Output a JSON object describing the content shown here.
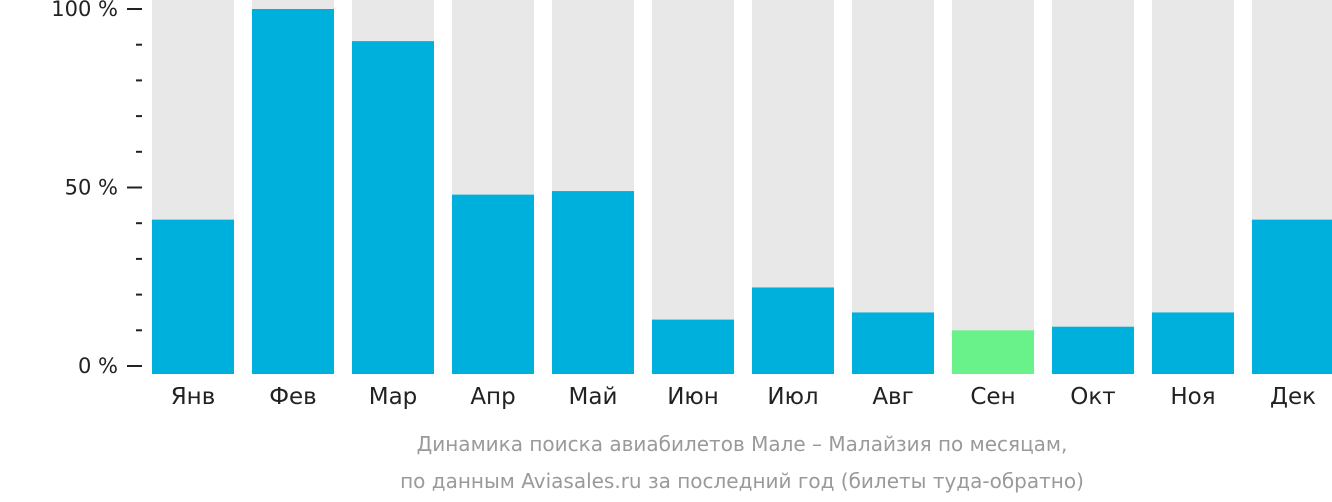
{
  "chart_data": {
    "type": "bar",
    "categories": [
      "Янв",
      "Фев",
      "Мар",
      "Апр",
      "Май",
      "Июн",
      "Июл",
      "Авг",
      "Сен",
      "Окт",
      "Ноя",
      "Дек"
    ],
    "values": [
      41,
      100,
      91,
      48,
      49,
      13,
      22,
      15,
      10,
      11,
      15,
      41
    ],
    "ylim": [
      0,
      100
    ],
    "y_ticks": [
      {
        "value": 100,
        "label": "100 %"
      },
      {
        "value": 50,
        "label": "50 %"
      },
      {
        "value": 0,
        "label": "0 %"
      }
    ],
    "minor_tick_step": 10,
    "caption_line1": "Динамика поиска авиабилетов Мале – Малайзия по месяцам,",
    "caption_line2": "по данным Aviasales.ru за последний год (билеты туда-обратно)",
    "colors": {
      "bar": "#00b0dc",
      "highlight_bar": "#6af28a",
      "track": "#e8e8e8",
      "axis": "#222222"
    },
    "highlight_category": "Сен",
    "grid": false,
    "legend": "none"
  }
}
